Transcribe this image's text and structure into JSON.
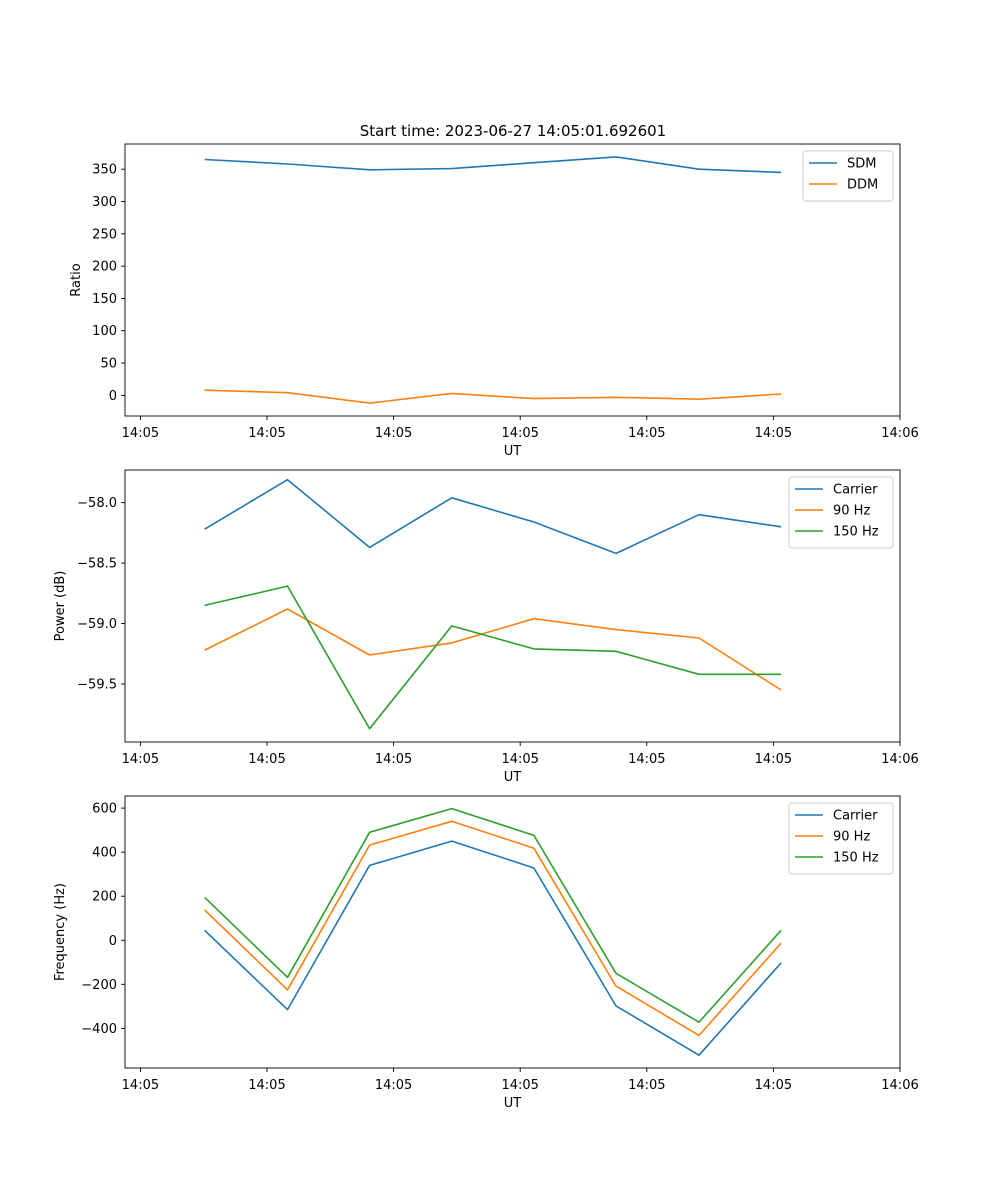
{
  "figure": {
    "title": "Start time: 2023-06-27 14:05:01.692601"
  },
  "chart_data": [
    {
      "type": "line",
      "ylabel": "Ratio",
      "xlabel": "UT",
      "xlim": [
        -0.18,
        8.88
      ],
      "ylim": [
        -32,
        389
      ],
      "x": [
        0.75,
        1.72,
        2.68,
        3.64,
        4.6,
        5.56,
        6.53,
        7.49
      ],
      "x_ticks": [
        0,
        1.48,
        2.96,
        4.44,
        5.92,
        7.4,
        8.88
      ],
      "x_tick_labels": [
        "14:05",
        "14:05",
        "14:05",
        "14:05",
        "14:05",
        "14:05",
        "14:06"
      ],
      "y_ticks": [
        0,
        50,
        100,
        150,
        200,
        250,
        300,
        350
      ],
      "y_tick_labels": [
        "0",
        "50",
        "100",
        "150",
        "200",
        "250",
        "300",
        "350"
      ],
      "legend_position": "upper-right",
      "series": [
        {
          "name": "SDM",
          "color": "#1f77b4",
          "values": [
            365,
            358,
            349,
            351,
            360,
            369,
            350,
            345
          ]
        },
        {
          "name": "DDM",
          "color": "#ff7f0e",
          "values": [
            8,
            4,
            -12,
            3,
            -5,
            -3,
            -6,
            2
          ]
        }
      ]
    },
    {
      "type": "line",
      "ylabel": "Power (dB)",
      "xlabel": "UT",
      "xlim": [
        -0.18,
        8.88
      ],
      "ylim": [
        -59.98,
        -57.73
      ],
      "x": [
        0.75,
        1.72,
        2.68,
        3.64,
        4.6,
        5.56,
        6.53,
        7.49
      ],
      "x_ticks": [
        0,
        1.48,
        2.96,
        4.44,
        5.92,
        7.4,
        8.88
      ],
      "x_tick_labels": [
        "14:05",
        "14:05",
        "14:05",
        "14:05",
        "14:05",
        "14:05",
        "14:06"
      ],
      "y_ticks": [
        -58.0,
        -58.5,
        -59.0,
        -59.5
      ],
      "y_tick_labels": [
        "−58.0",
        "−58.5",
        "−59.0",
        "−59.5"
      ],
      "legend_position": "upper-right",
      "series": [
        {
          "name": "Carrier",
          "color": "#1f77b4",
          "values": [
            -58.22,
            -57.81,
            -58.37,
            -57.96,
            -58.16,
            -58.42,
            -58.1,
            -58.2
          ]
        },
        {
          "name": "90 Hz",
          "color": "#ff7f0e",
          "values": [
            -59.22,
            -58.88,
            -59.26,
            -59.16,
            -58.96,
            -59.05,
            -59.12,
            -59.55
          ]
        },
        {
          "name": "150 Hz",
          "color": "#2ca02c",
          "values": [
            -58.85,
            -58.69,
            -59.87,
            -59.02,
            -59.21,
            -59.23,
            -59.42,
            -59.42
          ]
        }
      ]
    },
    {
      "type": "line",
      "ylabel": "Frequency (Hz)",
      "xlabel": "UT",
      "xlim": [
        -0.18,
        8.88
      ],
      "ylim": [
        -580,
        655
      ],
      "x": [
        0.75,
        1.72,
        2.68,
        3.64,
        4.6,
        5.56,
        6.53,
        7.49
      ],
      "x_ticks": [
        0,
        1.48,
        2.96,
        4.44,
        5.92,
        7.4,
        8.88
      ],
      "x_tick_labels": [
        "14:05",
        "14:05",
        "14:05",
        "14:05",
        "14:05",
        "14:05",
        "14:06"
      ],
      "y_ticks": [
        -400,
        -200,
        0,
        200,
        400,
        600
      ],
      "y_tick_labels": [
        "−400",
        "−200",
        "0",
        "200",
        "400",
        "600"
      ],
      "legend_position": "upper-right",
      "series": [
        {
          "name": "Carrier",
          "color": "#1f77b4",
          "values": [
            45,
            -315,
            340,
            450,
            328,
            -298,
            -522,
            -103
          ]
        },
        {
          "name": "90 Hz",
          "color": "#ff7f0e",
          "values": [
            138,
            -225,
            432,
            540,
            418,
            -208,
            -432,
            -13
          ]
        },
        {
          "name": "150 Hz",
          "color": "#2ca02c",
          "values": [
            195,
            -168,
            490,
            598,
            476,
            -150,
            -372,
            45
          ]
        }
      ]
    }
  ]
}
